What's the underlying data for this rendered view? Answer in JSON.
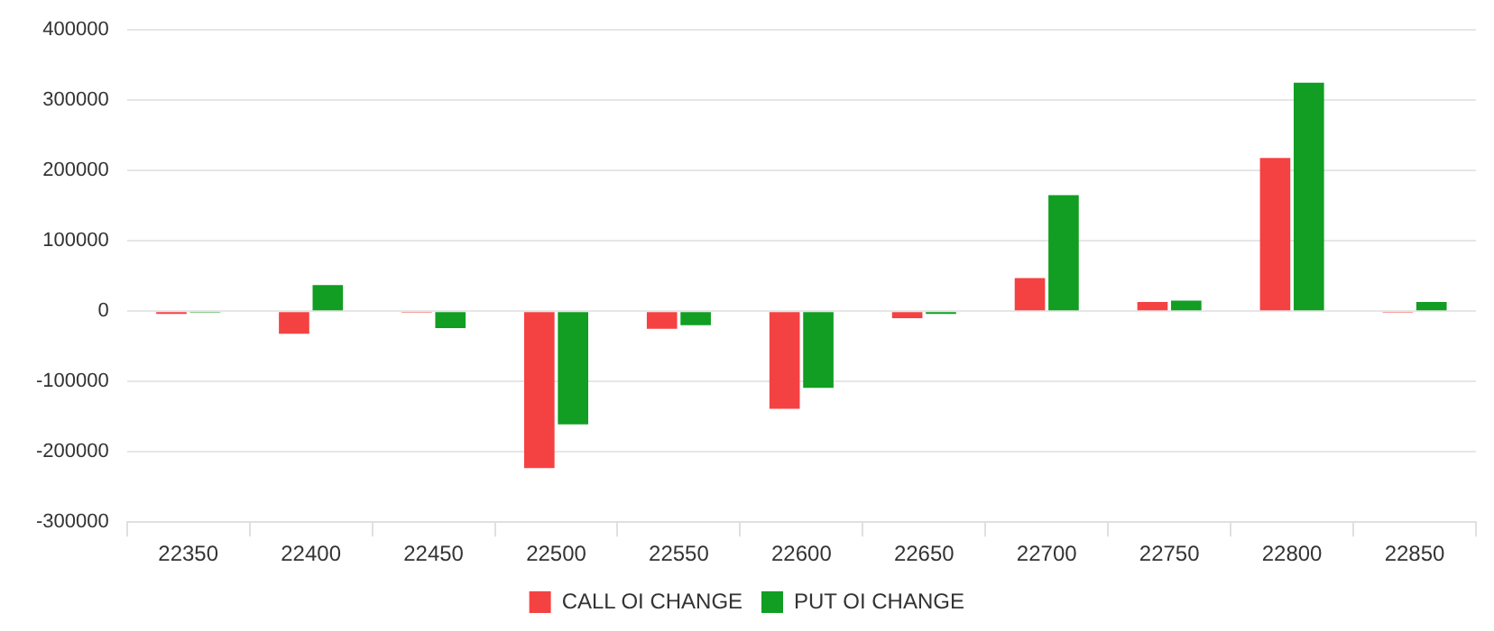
{
  "chart_data": {
    "type": "bar",
    "categories": [
      "22350",
      "22400",
      "22450",
      "22500",
      "22550",
      "22600",
      "22650",
      "22700",
      "22750",
      "22800",
      "22850"
    ],
    "series": [
      {
        "name": "CALL OI CHANGE",
        "color": "#f44242",
        "values": [
          -4000,
          -32000,
          -2000,
          -223000,
          -25000,
          -139000,
          -10000,
          47000,
          13000,
          218000,
          -2000
        ]
      },
      {
        "name": "PUT OI CHANGE",
        "color": "#119e22",
        "values": [
          -2000,
          37000,
          -24000,
          -161000,
          -20000,
          -109000,
          -4000,
          165000,
          15000,
          325000,
          13000
        ]
      }
    ],
    "ylim": [
      -300000,
      400000
    ],
    "yticks": [
      -300000,
      -200000,
      -100000,
      0,
      100000,
      200000,
      300000,
      400000
    ],
    "grid": "y",
    "legend": "bottom"
  }
}
